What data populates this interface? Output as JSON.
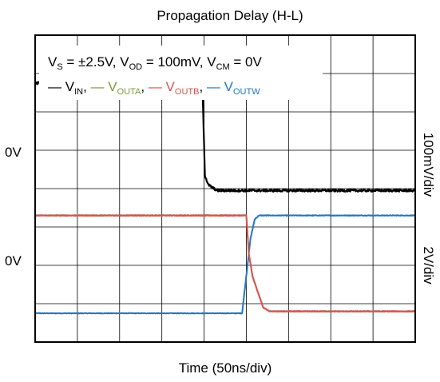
{
  "chart_data": {
    "type": "line",
    "title": "Propagation Delay (H-L)",
    "xlabel": "Time (50ns/div)",
    "ylabel_right_top": "100mV/div",
    "ylabel_right_bottom": "2V/div",
    "zero_labels": [
      "0V",
      "0V"
    ],
    "grid": true,
    "x_divisions": 9,
    "y_divisions": 8,
    "xlim_div": [
      0,
      9
    ],
    "ylim_div": [
      0,
      8
    ],
    "annotation": {
      "line1": "V_S = ±2.5V, V_OD = 100mV, V_CM = 0V",
      "vs": "V",
      "vs_sub": "S",
      "vs_val": " = ±2.5V, ",
      "vod": "V",
      "vod_sub": "OD",
      "vod_val": " = 100mV, ",
      "vcm": "V",
      "vcm_sub": "CM",
      "vcm_val": " = 0V"
    },
    "legend_position": "top-left",
    "series": [
      {
        "name": "V_IN",
        "label_main": "V",
        "label_sub": "IN",
        "color": "#000000",
        "x": [
          0,
          3.8,
          3.96,
          4.02,
          4.1,
          4.3,
          9
        ],
        "y": [
          6.75,
          6.75,
          6.7,
          4.35,
          4.1,
          3.95,
          3.95
        ]
      },
      {
        "name": "V_OUTA",
        "label_main": "V",
        "label_sub": "OUTA",
        "color": "#7a9a3a",
        "x": [
          0,
          5.0,
          5.06,
          5.15,
          5.4,
          5.55,
          9
        ],
        "y": [
          3.3,
          3.3,
          2.3,
          1.7,
          0.9,
          0.8,
          0.8
        ]
      },
      {
        "name": "V_OUTB",
        "label_main": "V",
        "label_sub": "OUTB",
        "color": "#d9534f",
        "x": [
          0,
          5.0,
          5.06,
          5.15,
          5.4,
          5.55,
          9
        ],
        "y": [
          3.3,
          3.3,
          2.3,
          1.7,
          0.9,
          0.8,
          0.8
        ]
      },
      {
        "name": "V_OUTW",
        "label_main": "V",
        "label_sub": "OUTW",
        "color": "#1f77c4",
        "x": [
          0,
          4.9,
          5.1,
          5.2,
          5.3,
          9
        ],
        "y": [
          0.75,
          0.75,
          2.7,
          3.2,
          3.3,
          3.3
        ]
      }
    ]
  }
}
